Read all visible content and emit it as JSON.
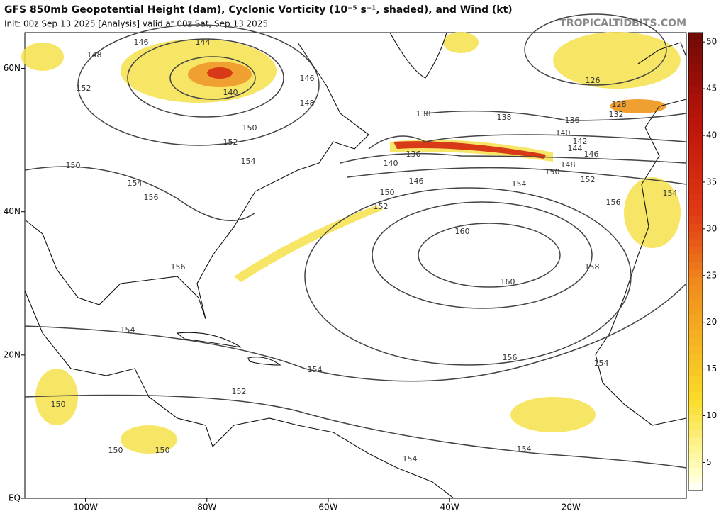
{
  "header": {
    "title": "GFS 850mb Geopotential Height (dam), Cyclonic Vorticity (10⁻⁵ s⁻¹, shaded), and Wind (kt)",
    "subtitle": "Init: 00z Sep 13 2025   [Analysis]   valid at 00z Sat, Sep 13 2025",
    "watermark": "TROPICALTIDBITS.COM"
  },
  "map": {
    "xlim": [
      -110,
      -1
    ],
    "ylim": [
      0,
      65
    ],
    "xticks": [
      {
        "value": -100,
        "label": "100W"
      },
      {
        "value": -80,
        "label": "80W"
      },
      {
        "value": -60,
        "label": "60W"
      },
      {
        "value": -40,
        "label": "40W"
      },
      {
        "value": -20,
        "label": "20W"
      }
    ],
    "yticks": [
      {
        "value": 0,
        "label": "EQ"
      },
      {
        "value": 20,
        "label": "20N"
      },
      {
        "value": 40,
        "label": "40N"
      },
      {
        "value": 60,
        "label": "60N"
      }
    ],
    "contour_labels": [
      148,
      146,
      144,
      140,
      152,
      150,
      152,
      154,
      148,
      146,
      150,
      154,
      156,
      156,
      154,
      152,
      150,
      150,
      150,
      154,
      154,
      154,
      138,
      136,
      140,
      146,
      150,
      152,
      160,
      160,
      156,
      158,
      156,
      154,
      152,
      150,
      148,
      146,
      144,
      142,
      140,
      136,
      138,
      132,
      128,
      126,
      154,
      154
    ]
  },
  "colorbar": {
    "range": [
      2,
      51
    ],
    "ticks": [
      5,
      10,
      15,
      20,
      25,
      30,
      35,
      40,
      45,
      50
    ]
  }
}
